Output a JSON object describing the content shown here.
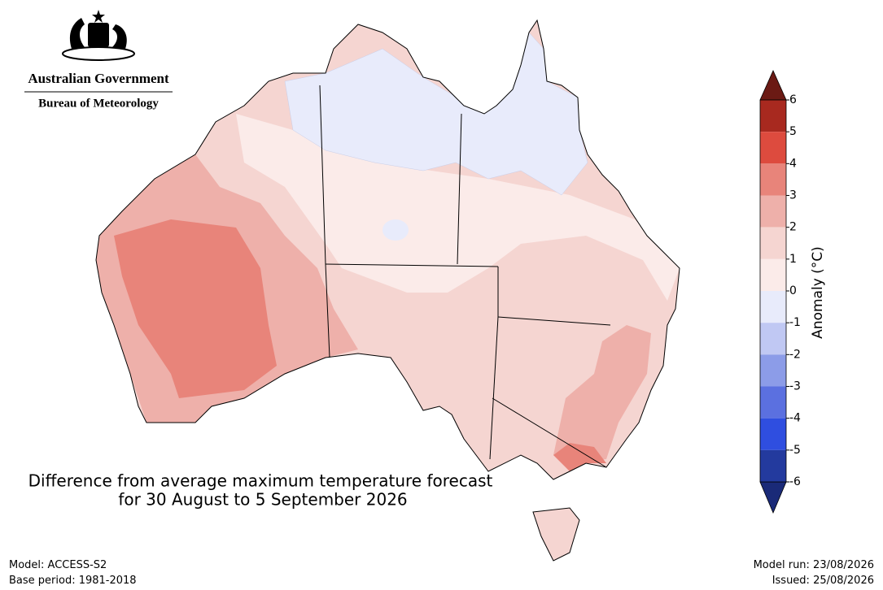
{
  "header": {
    "government": "Australian Government",
    "agency": "Bureau of Meteorology"
  },
  "title": {
    "line1": "Difference from average maximum temperature forecast",
    "line2": "for 30 August to 5 September 2026"
  },
  "colorbar": {
    "label": "Anomaly (°C)",
    "ticks": [
      6,
      5,
      4,
      3,
      2,
      1,
      0,
      -1,
      -2,
      -3,
      -4,
      -5,
      -6
    ],
    "colors": [
      "#a8291f",
      "#dd4b3e",
      "#e8847a",
      "#eeb0aa",
      "#f5d5d1",
      "#fbebe9",
      "#e8ebfb",
      "#c0c8f3",
      "#8c9ce8",
      "#5b70e0",
      "#2f4ee0",
      "#233a9e"
    ],
    "over_color": "#6b1a14",
    "under_color": "#1a2a78"
  },
  "footer": {
    "model": "Model: ACCESS-S2",
    "base_period": "Base period: 1981-2018",
    "model_run": "Model run: 23/08/2026",
    "issued": "Issued: 25/08/2026"
  }
}
